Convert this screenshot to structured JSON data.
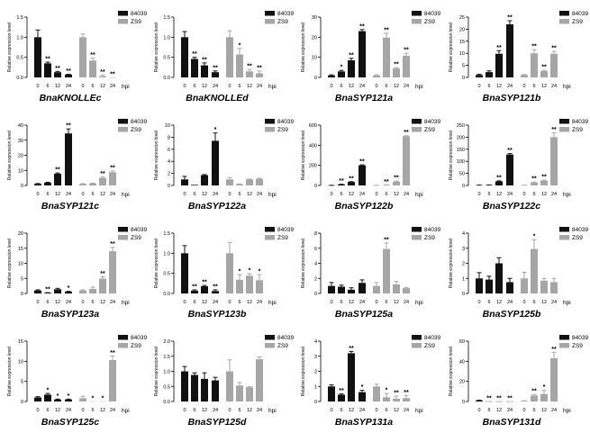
{
  "chart_data": {
    "type": "bar",
    "layout": "4x4 grid of grouped bar charts",
    "ylabel": "Relative expression level",
    "xlabel": "hpi",
    "categories": [
      "0",
      "6",
      "12",
      "24"
    ],
    "series_names": [
      "84039",
      "ZS9"
    ],
    "colors": {
      "84039": "#111111",
      "ZS9": "#a6a6a6"
    },
    "legend_position": "top-right",
    "grid": false,
    "panels": [
      {
        "title": "BnaKNOLLEc",
        "ylim": [
          0,
          1.5
        ],
        "yticks": [
          "0.0",
          "0.5",
          "1.0",
          "1.5"
        ],
        "series": [
          {
            "name": "84039",
            "values": [
              1.0,
              0.35,
              0.13,
              0.07
            ],
            "errors": [
              0.18,
              0.03,
              0.02,
              0.01
            ],
            "sig": [
              "",
              "**",
              "**",
              "**"
            ]
          },
          {
            "name": "ZS9",
            "values": [
              1.0,
              0.42,
              0.03,
              0.0
            ],
            "errors": [
              0.08,
              0.06,
              0.03,
              0
            ],
            "sig": [
              "",
              "**",
              "**",
              "**"
            ]
          }
        ]
      },
      {
        "title": "BnaKNOLLEd",
        "ylim": [
          0,
          1.5
        ],
        "yticks": [
          "0.0",
          "0.5",
          "1.0",
          "1.5"
        ],
        "series": [
          {
            "name": "84039",
            "values": [
              1.0,
              0.46,
              0.3,
              0.13
            ],
            "errors": [
              0.14,
              0.04,
              0.06,
              0.03
            ],
            "sig": [
              "",
              "**",
              "**",
              "**"
            ]
          },
          {
            "name": "ZS9",
            "values": [
              1.0,
              0.57,
              0.15,
              0.1
            ],
            "errors": [
              0.16,
              0.15,
              0.05,
              0.06
            ],
            "sig": [
              "",
              "*",
              "**",
              "**"
            ]
          }
        ]
      },
      {
        "title": "BnaSYP121a",
        "ylim": [
          0,
          30
        ],
        "yticks": [
          "0",
          "10",
          "20",
          "30"
        ],
        "series": [
          {
            "name": "84039",
            "values": [
              1,
              3,
              8.5,
              23
            ],
            "errors": [
              0.3,
              0.5,
              1,
              0.8
            ],
            "sig": [
              "",
              "*",
              "**",
              "**"
            ]
          },
          {
            "name": "ZS9",
            "values": [
              1,
              19.8,
              4.5,
              10.8
            ],
            "errors": [
              0.3,
              2.2,
              0.4,
              1.2
            ],
            "sig": [
              "",
              "**",
              "**",
              "**"
            ]
          }
        ]
      },
      {
        "title": "BnaSYP121b",
        "ylim": [
          0,
          25
        ],
        "yticks": [
          "0",
          "5",
          "10",
          "15",
          "20",
          "25"
        ],
        "series": [
          {
            "name": "84039",
            "values": [
              1,
              2.2,
              9.8,
              22
            ],
            "errors": [
              0.3,
              0.5,
              1.3,
              1.5
            ],
            "sig": [
              "",
              "",
              "**",
              "**"
            ]
          },
          {
            "name": "ZS9",
            "values": [
              1,
              10,
              2.6,
              9.8
            ],
            "errors": [
              0.2,
              1.5,
              0.3,
              1
            ],
            "sig": [
              "",
              "**",
              "**",
              "**"
            ]
          }
        ]
      },
      {
        "title": "BnaSYP121c",
        "ylim": [
          0,
          40
        ],
        "yticks": [
          "0",
          "10",
          "20",
          "30",
          "40"
        ],
        "series": [
          {
            "name": "84039",
            "values": [
              1,
              1.8,
              7.8,
              34.5
            ],
            "errors": [
              0.3,
              0.3,
              0.5,
              3
            ],
            "sig": [
              "",
              "",
              "**",
              "**"
            ]
          },
          {
            "name": "ZS9",
            "values": [
              1,
              1.3,
              5,
              8.8
            ],
            "errors": [
              0.2,
              0.2,
              0.6,
              0.8
            ],
            "sig": [
              "",
              "",
              "**",
              "**"
            ]
          }
        ]
      },
      {
        "title": "BnaSYP122a",
        "ylim": [
          0,
          10
        ],
        "yticks": [
          "0",
          "2",
          "4",
          "6",
          "8",
          "10"
        ],
        "series": [
          {
            "name": "84039",
            "values": [
              1,
              0.1,
              1.7,
              7.4
            ],
            "errors": [
              0.5,
              0,
              0.1,
              1.3
            ],
            "sig": [
              "",
              "",
              "",
              "*"
            ]
          },
          {
            "name": "ZS9",
            "values": [
              1,
              0.2,
              1,
              1.1
            ],
            "errors": [
              0.3,
              0.05,
              0.05,
              0.1
            ],
            "sig": [
              "",
              "",
              "",
              ""
            ]
          }
        ]
      },
      {
        "title": "BnaSYP122b",
        "ylim": [
          0,
          600
        ],
        "yticks": [
          "0",
          "200",
          "400",
          "600"
        ],
        "series": [
          {
            "name": "84039",
            "values": [
              1,
              10,
              35,
              200
            ],
            "errors": [
              0.5,
              2,
              3,
              5
            ],
            "sig": [
              "",
              "**",
              "**",
              "**"
            ]
          },
          {
            "name": "ZS9",
            "values": [
              1,
              5,
              38,
              490
            ],
            "errors": [
              0.5,
              1,
              5,
              5
            ],
            "sig": [
              "",
              "**",
              "**",
              "**"
            ]
          }
        ]
      },
      {
        "title": "BnaSYP122c",
        "ylim": [
          0,
          250
        ],
        "yticks": [
          "0",
          "50",
          "100",
          "150",
          "200",
          "250"
        ],
        "series": [
          {
            "name": "84039",
            "values": [
              1,
              1.5,
              17,
              128
            ],
            "errors": [
              0.3,
              0.3,
              2,
              4
            ],
            "sig": [
              "",
              "",
              "**",
              "**"
            ]
          },
          {
            "name": "ZS9",
            "values": [
              1,
              12,
              20,
              200
            ],
            "errors": [
              0.3,
              2,
              2,
              18
            ],
            "sig": [
              "",
              "**",
              "**",
              "**"
            ]
          }
        ]
      },
      {
        "title": "BnaSYP123a",
        "ylim": [
          0,
          20
        ],
        "yticks": [
          "0",
          "5",
          "10",
          "15",
          "20"
        ],
        "series": [
          {
            "name": "84039",
            "values": [
              1,
              0.2,
              1.4,
              0.6
            ],
            "errors": [
              0.2,
              0.05,
              0.3,
              0.1
            ],
            "sig": [
              "",
              "**",
              "",
              "*"
            ]
          },
          {
            "name": "ZS9",
            "values": [
              1,
              1.5,
              4.9,
              14
            ],
            "errors": [
              0.2,
              0.6,
              0.6,
              1.3
            ],
            "sig": [
              "",
              "",
              "**",
              "**"
            ]
          }
        ]
      },
      {
        "title": "BnaSYP123b",
        "ylim": [
          0,
          1.5
        ],
        "yticks": [
          "0.0",
          "0.5",
          "1.0",
          "1.5"
        ],
        "series": [
          {
            "name": "84039",
            "values": [
              1,
              0.07,
              0.18,
              0.06
            ],
            "errors": [
              0.19,
              0.02,
              0.02,
              0.03
            ],
            "sig": [
              "",
              "**",
              "**",
              "**"
            ]
          },
          {
            "name": "ZS9",
            "values": [
              1,
              0.34,
              0.44,
              0.33
            ],
            "errors": [
              0.27,
              0.13,
              0.05,
              0.14
            ],
            "sig": [
              "",
              "*",
              "*",
              "*"
            ]
          }
        ]
      },
      {
        "title": "BnaSYP125a",
        "ylim": [
          0,
          8
        ],
        "yticks": [
          "0",
          "2",
          "4",
          "6",
          "8"
        ],
        "series": [
          {
            "name": "84039",
            "values": [
              1,
              0.9,
              0.5,
              1.4
            ],
            "errors": [
              0.45,
              0.2,
              0.25,
              0.4
            ],
            "sig": [
              "",
              "",
              "",
              ""
            ]
          },
          {
            "name": "ZS9",
            "values": [
              1,
              5.9,
              1.2,
              0.7
            ],
            "errors": [
              0.45,
              0.8,
              0.4,
              0.1
            ],
            "sig": [
              "",
              "**",
              "",
              ""
            ]
          }
        ]
      },
      {
        "title": "BnaSYP125b",
        "ylim": [
          0,
          4
        ],
        "yticks": [
          "0",
          "1",
          "2",
          "3",
          "4"
        ],
        "series": [
          {
            "name": "84039",
            "values": [
              1,
              0.92,
              2,
              0.75
            ],
            "errors": [
              0.38,
              0.22,
              0.37,
              0.25
            ],
            "sig": [
              "",
              "",
              "",
              ""
            ]
          },
          {
            "name": "ZS9",
            "values": [
              1,
              2.95,
              0.85,
              0.75
            ],
            "errors": [
              0.4,
              0.62,
              0.15,
              0.25
            ],
            "sig": [
              "",
              "*",
              "",
              ""
            ]
          }
        ]
      },
      {
        "title": "BnaSYP125c",
        "ylim": [
          0,
          15
        ],
        "yticks": [
          "0",
          "5",
          "10",
          "15"
        ],
        "series": [
          {
            "name": "84039",
            "values": [
              1,
              1.7,
              0.5,
              0.5
            ],
            "errors": [
              0.2,
              0.3,
              0.1,
              0.1
            ],
            "sig": [
              "",
              "*",
              "*",
              "*"
            ]
          },
          {
            "name": "ZS9",
            "values": [
              0.8,
              0.05,
              0.05,
              10.3
            ],
            "errors": [
              0.5,
              0,
              0,
              1
            ],
            "sig": [
              "",
              "*",
              "*",
              "**"
            ]
          }
        ]
      },
      {
        "title": "BnaSYP125d",
        "ylim": [
          0,
          2
        ],
        "yticks": [
          "0.0",
          "0.5",
          "1.0",
          "1.5",
          "2.0"
        ],
        "series": [
          {
            "name": "84039",
            "values": [
              1,
              0.88,
              0.75,
              0.7
            ],
            "errors": [
              0.16,
              0.07,
              0.2,
              0.1
            ],
            "sig": [
              "",
              "",
              "",
              ""
            ]
          },
          {
            "name": "ZS9",
            "values": [
              1,
              0.53,
              0.47,
              1.4
            ],
            "errors": [
              0.38,
              0.1,
              0.02,
              0.08
            ],
            "sig": [
              "",
              "",
              "",
              ""
            ]
          }
        ]
      },
      {
        "title": "BnaSYP131a",
        "ylim": [
          0,
          4
        ],
        "yticks": [
          "0",
          "1",
          "2",
          "3",
          "4"
        ],
        "series": [
          {
            "name": "84039",
            "values": [
              1,
              0.45,
              3.2,
              0.62
            ],
            "errors": [
              0.1,
              0.05,
              0.12,
              0.12
            ],
            "sig": [
              "",
              "**",
              "**",
              "*"
            ]
          },
          {
            "name": "ZS9",
            "values": [
              1,
              0.28,
              0.18,
              0.22
            ],
            "errors": [
              0.15,
              0.25,
              0.18,
              0.18
            ],
            "sig": [
              "",
              "*",
              "**",
              "**"
            ]
          }
        ]
      },
      {
        "title": "BnaSYP131d",
        "ylim": [
          0,
          60
        ],
        "yticks": [
          "0",
          "20",
          "40",
          "60"
        ],
        "series": [
          {
            "name": "84039",
            "values": [
              1,
              0.1,
              0.1,
              0.1
            ],
            "errors": [
              0.3,
              0,
              0,
              0
            ],
            "sig": [
              "",
              "**",
              "**",
              "**"
            ]
          },
          {
            "name": "ZS9",
            "values": [
              0.5,
              6,
              7.5,
              43
            ],
            "errors": [
              0.2,
              1,
              3.5,
              6
            ],
            "sig": [
              "",
              "**",
              "*",
              "**"
            ]
          }
        ]
      }
    ]
  }
}
